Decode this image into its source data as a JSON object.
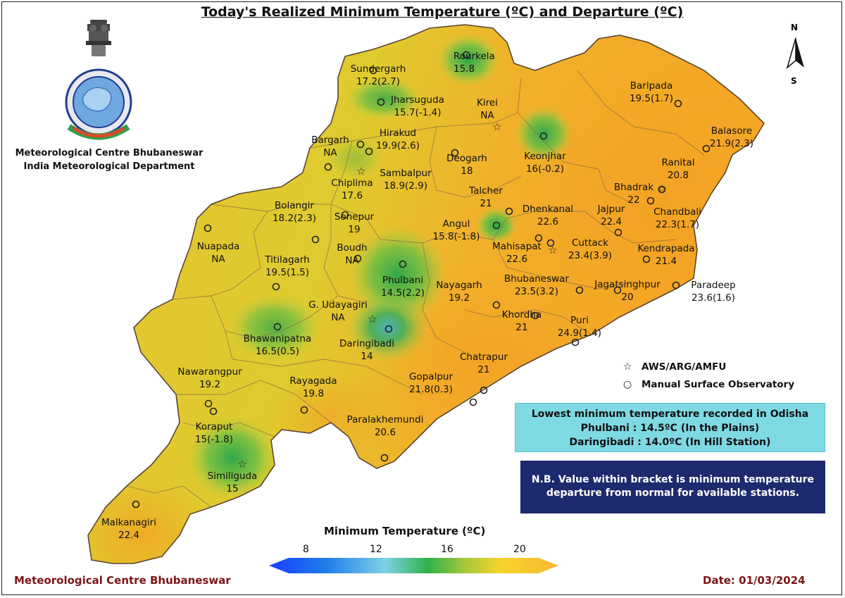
{
  "title": "Today's Realized Minimum Temperature (ºC) and Departure (ºC)",
  "org": {
    "line1": "Meteorological Centre Bhubaneswar",
    "line2": "India Meteorological Department"
  },
  "compass": {
    "north": "N",
    "south": "S"
  },
  "stations": [
    {
      "name": "Sundergarh",
      "value": "17.2(2.7)",
      "symbol": "circle"
    },
    {
      "name": "Rourkela",
      "value": "15.8",
      "symbol": "circle"
    },
    {
      "name": "Jharsuguda",
      "value": "15.7(-1.4)",
      "symbol": "circle"
    },
    {
      "name": "Kirei",
      "value": "NA",
      "symbol": "star"
    },
    {
      "name": "Baripada",
      "value": "19.5(1.7)",
      "symbol": "circle"
    },
    {
      "name": "Balasore",
      "value": "21.9(2.3)",
      "symbol": "circle"
    },
    {
      "name": "Bargarh",
      "value": "NA",
      "symbol": "circle"
    },
    {
      "name": "Hirakud",
      "value": "19.9(2.6)",
      "symbol": "circle"
    },
    {
      "name": "Deogarh",
      "value": "18",
      "symbol": "circle"
    },
    {
      "name": "Keonjhar",
      "value": "16(-0.2)",
      "symbol": "circle"
    },
    {
      "name": "Ranital",
      "value": "20.8",
      "symbol": "circle"
    },
    {
      "name": "Chiplima",
      "value": "17.6",
      "symbol": "star"
    },
    {
      "name": "Sambalpur",
      "value": "18.9(2.9)",
      "symbol": "circle"
    },
    {
      "name": "Bhadrak",
      "value": "22",
      "symbol": "star"
    },
    {
      "name": "Talcher",
      "value": "21",
      "symbol": "circle"
    },
    {
      "name": "Chandbali",
      "value": "22.3(1.7)",
      "symbol": "circle"
    },
    {
      "name": "Bolangir",
      "value": "18.2(2.3)",
      "symbol": "circle"
    },
    {
      "name": "Sonepur",
      "value": "19",
      "symbol": "circle"
    },
    {
      "name": "Dhenkanal",
      "value": "22.6",
      "symbol": "circle"
    },
    {
      "name": "Jajpur",
      "value": "22.4",
      "symbol": "circle"
    },
    {
      "name": "Nuapada",
      "value": "NA",
      "symbol": "circle"
    },
    {
      "name": "Angul",
      "value": "15.8(-1.8)",
      "symbol": "circle"
    },
    {
      "name": "Titilagarh",
      "value": "19.5(1.5)",
      "symbol": "circle"
    },
    {
      "name": "Boudh",
      "value": "NA",
      "symbol": "circle"
    },
    {
      "name": "Mahisapat",
      "value": "22.6",
      "symbol": "star"
    },
    {
      "name": "Cuttack",
      "value": "23.4(3.9)",
      "symbol": "circle"
    },
    {
      "name": "Kendrapada",
      "value": "21.4",
      "symbol": "circle"
    },
    {
      "name": "Phulbani",
      "value": "14.5(2.2)",
      "symbol": "circle"
    },
    {
      "name": "Nayagarh",
      "value": "19.2",
      "symbol": "circle"
    },
    {
      "name": "Bhubaneswar",
      "value": "23.5(3.2)",
      "symbol": "circle"
    },
    {
      "name": "Jagatsinghpur",
      "value": "20",
      "symbol": "circle"
    },
    {
      "name": "Paradeep",
      "value": "23.6(1.6)",
      "symbol": "circle"
    },
    {
      "name": "G. Udayagiri",
      "value": "NA",
      "symbol": "star"
    },
    {
      "name": "Khordha",
      "value": "21",
      "symbol": "circle"
    },
    {
      "name": "Puri",
      "value": "24.9(1.4)",
      "symbol": "circle"
    },
    {
      "name": "Bhawanipatna",
      "value": "16.5(0.5)",
      "symbol": "circle"
    },
    {
      "name": "Daringibadi",
      "value": "14",
      "symbol": "circle"
    },
    {
      "name": "Chatrapur",
      "value": "21",
      "symbol": "circle"
    },
    {
      "name": "Nawarangpur",
      "value": "19.2",
      "symbol": "circle"
    },
    {
      "name": "Rayagada",
      "value": "19.8",
      "symbol": "circle"
    },
    {
      "name": "Gopalpur",
      "value": "21.8(0.3)",
      "symbol": "circle"
    },
    {
      "name": "Koraput",
      "value": "15(-1.8)",
      "symbol": "circle"
    },
    {
      "name": "Paralakhemundi",
      "value": "20.6",
      "symbol": "circle"
    },
    {
      "name": "Similiguda",
      "value": "15",
      "symbol": "star"
    },
    {
      "name": "Malkanagiri",
      "value": "22.4",
      "symbol": "circle"
    }
  ],
  "legend": {
    "aws": "AWS/ARG/AMFU",
    "manual": "Manual Surface Observatory",
    "star_glyph": "☆",
    "circle_glyph": "○"
  },
  "lowest_box": {
    "line1": "Lowest minimum temperature recorded in Odisha",
    "line2": "Phulbani : 14.5ºC (In the Plains)",
    "line3": "Daringibadi : 14.0ºC (In Hill Station)"
  },
  "nb_box": {
    "line1": "N.B. Value within bracket is minimum temperature",
    "line2": "departure from normal for available stations."
  },
  "colorbar": {
    "title": "Minimum Temperature (ºC)",
    "ticks": [
      "8",
      "12",
      "16",
      "20"
    ],
    "colors": [
      "#1a4cff",
      "#1fa7e0",
      "#7fd0e8",
      "#2fb24a",
      "#8cc63f",
      "#f7d42a",
      "#f7b733"
    ]
  },
  "footer": {
    "left": "Meteorological Centre Bhubaneswar",
    "right": "Date: 01/03/2024"
  }
}
